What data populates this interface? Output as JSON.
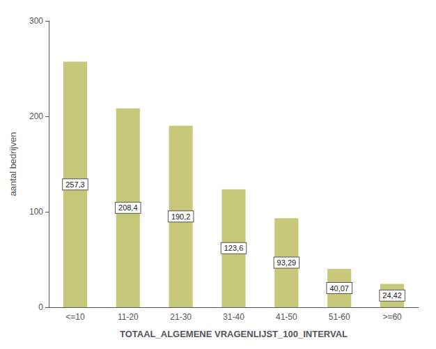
{
  "chart_data": {
    "type": "bar",
    "categories": [
      "<=10",
      "11-20",
      "21-30",
      "31-40",
      "41-50",
      "51-60",
      ">=60"
    ],
    "values": [
      257.3,
      208.4,
      190.2,
      123.6,
      93.29,
      40.07,
      24.42
    ],
    "value_labels": [
      "257,3",
      "208,4",
      "190,2",
      "123,6",
      "93,29",
      "40,07",
      "24,42"
    ],
    "data_labels": true,
    "color": "#c8c87a",
    "xlabel": "TOTAAL_ALGEMENE VRAGENLIJST_100_INTERVAL",
    "ylabel": "aantal bedrijven",
    "ylim": [
      0,
      300
    ],
    "yticks": [
      0,
      100,
      200,
      300
    ],
    "grid": false
  }
}
